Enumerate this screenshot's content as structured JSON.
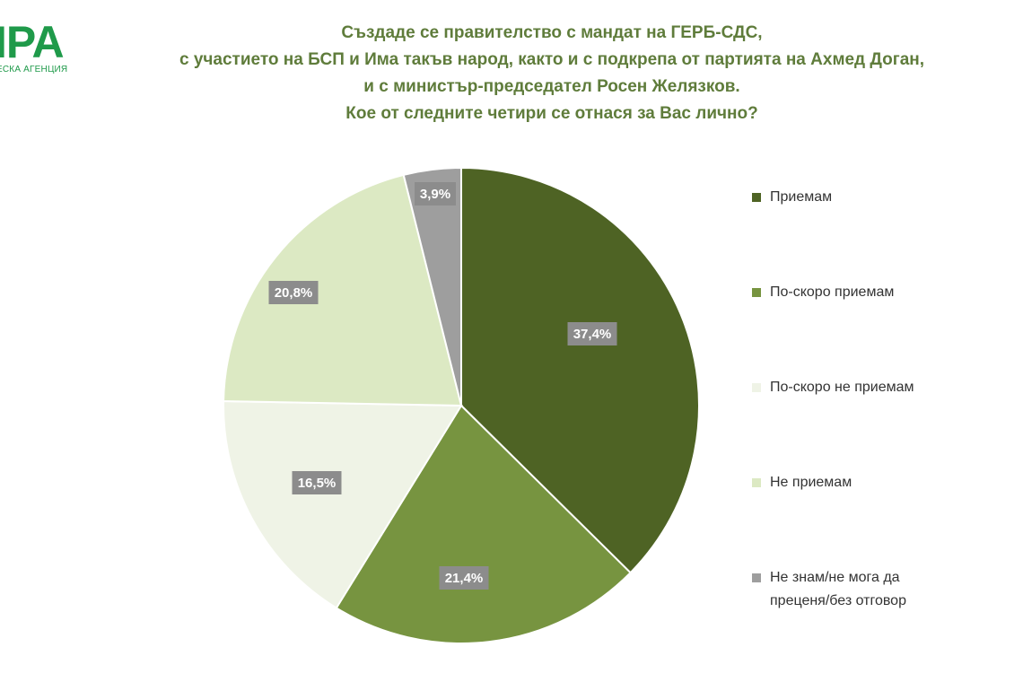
{
  "logo": {
    "mark": "IPA",
    "subtitle": "ЕСКА АГЕНЦИЯ"
  },
  "chart_data": {
    "type": "pie",
    "title_lines": [
      "Създаде се правителство с мандат на ГЕРБ-СДС,",
      "с участието на БСП и Има такъв народ, както и с подкрепа от партията на Ахмед Доган,",
      "и с министър-председател Росен Желязков.",
      "Кое от следните четири се отнася за Вас лично?"
    ],
    "categories": [
      "Приемам",
      "По-скоро приемам",
      "По-скоро не приемам",
      "Не приемам",
      "Не знам/не мога да преценя/без отговор"
    ],
    "values": [
      37.4,
      21.4,
      16.5,
      20.8,
      3.9
    ],
    "value_labels": [
      "37,4%",
      "21,4%",
      "16,5%",
      "20,8%",
      "3,9%"
    ],
    "colors": [
      "#4e6324",
      "#779440",
      "#eff3e6",
      "#dce9c3",
      "#9e9e9e"
    ],
    "legend_placement": "right",
    "start_angle": "12 o'clock",
    "direction": "clockwise"
  }
}
